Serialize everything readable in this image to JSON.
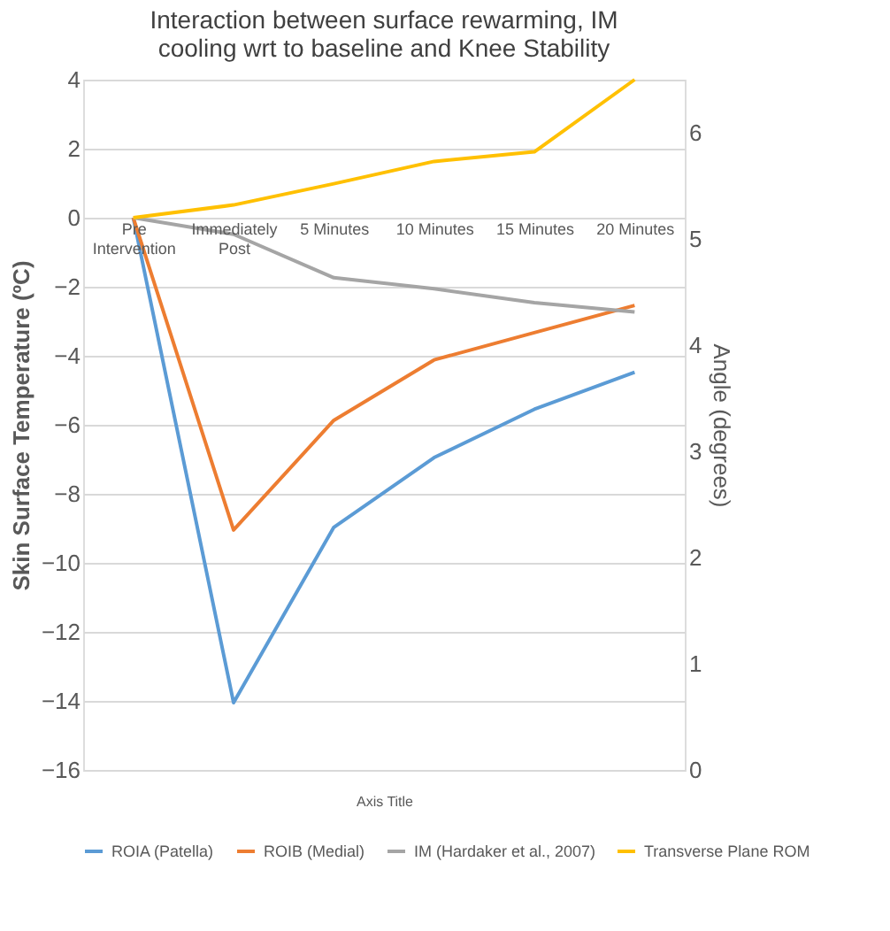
{
  "chart_data": {
    "type": "line",
    "title": "Interaction between surface rewarming, IM cooling wrt to baseline and Knee Stability",
    "xlabel": "Axis Title",
    "ylabel": "Skin Surface Temperature (ºC)",
    "y2label": "Angle (degrees)",
    "categories": [
      "Pre Intervention",
      "Immediately Post",
      "5 Minutes",
      "10 Minutes",
      "15 Minutes",
      "20 Minutes"
    ],
    "series": [
      {
        "name": "ROIA (Patella)",
        "color": "#5b9bd5",
        "values": [
          0,
          -14.05,
          -8.97,
          -6.95,
          -5.55,
          -4.48
        ]
      },
      {
        "name": "ROIB (Medial)",
        "color": "#ed7d31",
        "values": [
          0,
          -9.05,
          -5.87,
          -4.12,
          -3.33,
          -2.54
        ]
      },
      {
        "name": "IM (Hardaker et al., 2007)",
        "color": "#a5a5a5",
        "values": [
          0,
          -0.48,
          -1.74,
          -2.06,
          -2.46,
          -2.73
        ]
      },
      {
        "name": "Transverse Plane ROM",
        "color": "#ffc000",
        "axis": "y2",
        "values": [
          5.2,
          5.32,
          5.52,
          5.73,
          5.82,
          6.5
        ]
      }
    ],
    "ylim": [
      -16,
      4
    ],
    "yticks": [
      -16,
      -14,
      -12,
      -10,
      -8,
      -6,
      -4,
      -2,
      0,
      2,
      4
    ],
    "y2lim": [
      0,
      6.5
    ],
    "y2ticks": [
      0,
      1,
      2,
      3,
      4,
      5,
      6
    ],
    "grid": "y",
    "legend": "bottom",
    "marker": "none",
    "line_style": "solid"
  }
}
